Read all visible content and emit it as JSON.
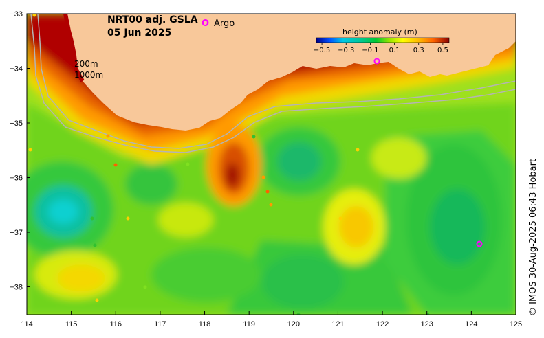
{
  "map": {
    "title_line1": "NRT00 adj. GSLA",
    "title_line2": "05 Jun 2025",
    "legend_symbol": "O",
    "legend_label": "Argo",
    "contour_label_shallow": "200m",
    "contour_label_deep": "1000m",
    "credit": "© IMOS 30-Aug-2025 06:43 Hobart"
  },
  "colorbar": {
    "title": "height anomaly (m)",
    "ticks": [
      "−0.5",
      "−0.3",
      "−0.1",
      "0.1",
      "0.3",
      "0.5"
    ]
  },
  "axes": {
    "lon_ticks": [
      "114",
      "115",
      "116",
      "117",
      "118",
      "119",
      "120",
      "121",
      "122",
      "123",
      "124",
      "125"
    ],
    "lat_ticks": [
      "−33",
      "−34",
      "−35",
      "−36",
      "−37",
      "−38"
    ]
  },
  "colors": {
    "land": "#f8c89a",
    "argo_marker": "#ff00ff",
    "bathymetry_line": "#b4b4b4"
  }
}
